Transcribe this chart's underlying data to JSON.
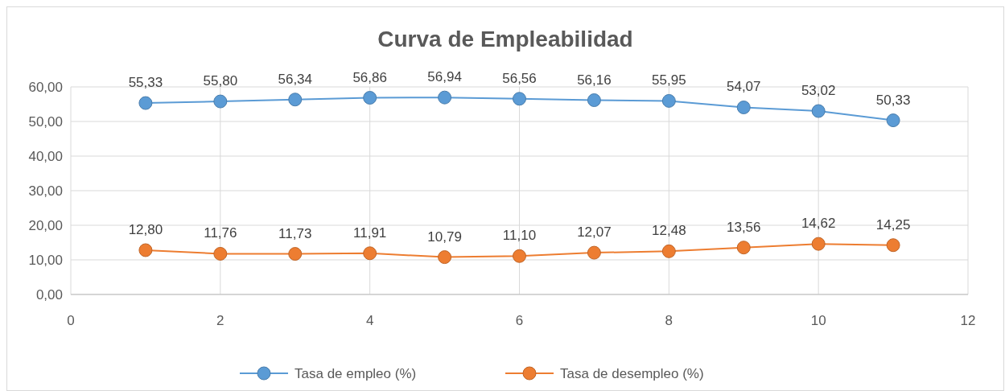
{
  "chart_data": {
    "type": "line",
    "title": "Curva de Empleabilidad",
    "x": [
      1,
      2,
      3,
      4,
      5,
      6,
      7,
      8,
      9,
      10,
      11
    ],
    "series": [
      {
        "name": "Tasa de empleo (%)",
        "color": "#5b9bd5",
        "values": [
          55.33,
          55.8,
          56.34,
          56.86,
          56.94,
          56.56,
          56.16,
          55.95,
          54.07,
          53.02,
          50.33
        ],
        "value_labels": [
          "55,33",
          "55,80",
          "56,34",
          "56,86",
          "56,94",
          "56,56",
          "56,16",
          "55,95",
          "54,07",
          "53,02",
          "50,33"
        ]
      },
      {
        "name": "Tasa de desempleo (%)",
        "color": "#ed7d31",
        "values": [
          12.8,
          11.76,
          11.73,
          11.91,
          10.79,
          11.1,
          12.07,
          12.48,
          13.56,
          14.62,
          14.25
        ],
        "value_labels": [
          "12,80",
          "11,76",
          "11,73",
          "11,91",
          "10,79",
          "11,10",
          "12,07",
          "12,48",
          "13,56",
          "14,62",
          "14,25"
        ]
      }
    ],
    "xlim": [
      0,
      12
    ],
    "xticks": [
      0,
      2,
      4,
      6,
      8,
      10,
      12
    ],
    "ylim": [
      0,
      60
    ],
    "yticks": [
      {
        "value": 0,
        "label": "0,00"
      },
      {
        "value": 10,
        "label": "10,00"
      },
      {
        "value": 20,
        "label": "20,00"
      },
      {
        "value": 30,
        "label": "30,00"
      },
      {
        "value": 40,
        "label": "40,00"
      },
      {
        "value": 50,
        "label": "50,00"
      },
      {
        "value": 60,
        "label": "60,00"
      }
    ],
    "grid": true,
    "legend": "bottom",
    "marker": "circle",
    "line_style": "solid"
  }
}
